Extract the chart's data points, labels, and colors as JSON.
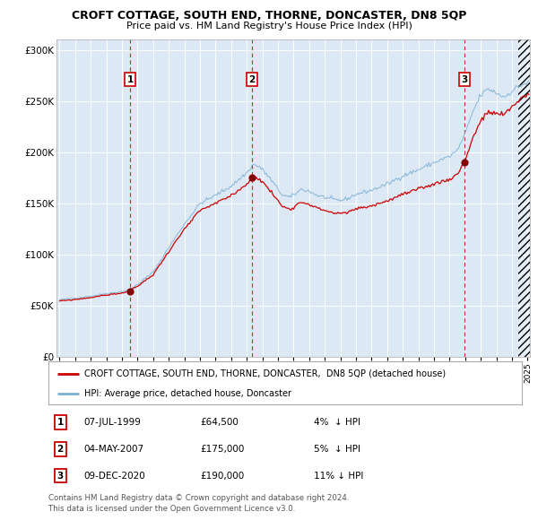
{
  "title": "CROFT COTTAGE, SOUTH END, THORNE, DONCASTER, DN8 5QP",
  "subtitle": "Price paid vs. HM Land Registry's House Price Index (HPI)",
  "legend_line1": "CROFT COTTAGE, SOUTH END, THORNE, DONCASTER,  DN8 5QP (detached house)",
  "legend_line2": "HPI: Average price, detached house, Doncaster",
  "table_entries": [
    {
      "num": "1",
      "date": "07-JUL-1999",
      "price": "£64,500",
      "pct": "4%  ↓ HPI"
    },
    {
      "num": "2",
      "date": "04-MAY-2007",
      "price": "£175,000",
      "pct": "5%  ↓ HPI"
    },
    {
      "num": "3",
      "date": "09-DEC-2020",
      "price": "£190,000",
      "pct": "11% ↓ HPI"
    }
  ],
  "footnote1": "Contains HM Land Registry data © Crown copyright and database right 2024.",
  "footnote2": "This data is licensed under the Open Government Licence v3.0.",
  "bg_color": "#dce9f5",
  "red_line_color": "#cc0000",
  "blue_line_color": "#7bafd4",
  "sale_dot_color": "#880000",
  "dashed_line_color": "#cc0000",
  "grid_color": "#ffffff",
  "ylim": [
    0,
    310000
  ],
  "yticks": [
    0,
    50000,
    100000,
    150000,
    200000,
    250000,
    300000
  ],
  "ytick_labels": [
    "£0",
    "£50K",
    "£100K",
    "£150K",
    "£200K",
    "£250K",
    "£300K"
  ],
  "xstart_year": 1995,
  "xend_year": 2025,
  "sale1_year": 1999.52,
  "sale2_year": 2007.34,
  "sale3_year": 2020.94,
  "sale1_price": 64500,
  "sale2_price": 175000,
  "sale3_price": 190000
}
